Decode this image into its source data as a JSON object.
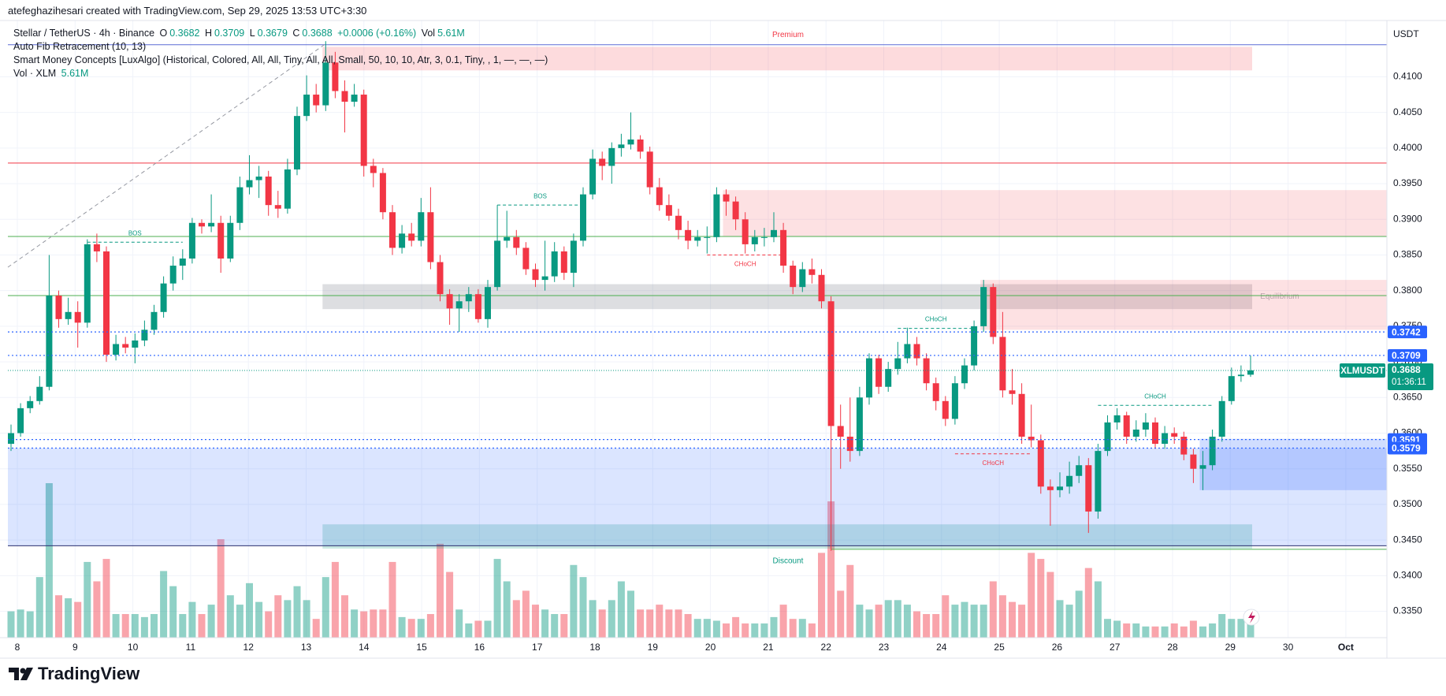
{
  "header": {
    "attribution": "atefeghazihesari created with TradingView.com, Sep 29, 2025 13:53 UTC+3:30"
  },
  "legend": {
    "symbol": "Stellar / TetherUS · 4h · Binance",
    "fields": [
      {
        "key": "O",
        "value": 0.3682
      },
      {
        "key": "H",
        "value": 0.3709
      },
      {
        "key": "L",
        "value": 0.3679
      },
      {
        "key": "C",
        "value": 0.3688
      }
    ],
    "change": "+0.0006 (+0.16%)",
    "vol_key": "Vol",
    "vol": "5.61M",
    "indicators": [
      "Auto Fib Retracement (10, 13)",
      "Smart Money Concepts [LuxAlgo] (Historical, Colored, All, All, Tiny, All, All, Small, 50, 10, 10, Atr, 3, 0.1, Tiny, , 1, —, —, —)"
    ],
    "volume_name": "Vol · XLM",
    "volume_value": "5.61M"
  },
  "brand": "TradingView",
  "chart_data": {
    "type": "candlestick",
    "currency": "USDT",
    "ylim": [
      0.3313,
      0.4179
    ],
    "yticks": [
      {
        "value": 0.335,
        "label": "0.3350"
      },
      {
        "value": 0.34,
        "label": "0.3400"
      },
      {
        "value": 0.345,
        "label": "0.3450"
      },
      {
        "value": 0.35,
        "label": "0.3500"
      },
      {
        "value": 0.355,
        "label": "0.3550"
      },
      {
        "value": 0.36,
        "label": "0.3600"
      },
      {
        "value": 0.365,
        "label": "0.3650"
      },
      {
        "value": 0.37,
        "label": "0.3700"
      },
      {
        "value": 0.375,
        "label": "0.3750"
      },
      {
        "value": 0.38,
        "label": "0.3800"
      },
      {
        "value": 0.385,
        "label": "0.3850"
      },
      {
        "value": 0.39,
        "label": "0.3900"
      },
      {
        "value": 0.395,
        "label": "0.3950"
      },
      {
        "value": 0.4,
        "label": "0.4000"
      },
      {
        "value": 0.405,
        "label": "0.4050"
      },
      {
        "value": 0.41,
        "label": "0.4100"
      }
    ],
    "day_labels": [
      "8",
      "9",
      "10",
      "11",
      "12",
      "13",
      "14",
      "15",
      "16",
      "17",
      "18",
      "19",
      "20",
      "21",
      "22",
      "23",
      "24",
      "25",
      "26",
      "27",
      "28",
      "29",
      "30",
      "Oct"
    ],
    "grid": true,
    "up_color": "#089981",
    "down_color": "#f23645",
    "candles": [
      [
        0.3585,
        0.3612,
        0.3575,
        0.36
      ],
      [
        0.36,
        0.3642,
        0.3595,
        0.3635
      ],
      [
        0.3635,
        0.3652,
        0.3628,
        0.3645
      ],
      [
        0.3645,
        0.368,
        0.364,
        0.3665
      ],
      [
        0.3665,
        0.385,
        0.366,
        0.3793
      ],
      [
        0.3793,
        0.38,
        0.3748,
        0.376
      ],
      [
        0.376,
        0.379,
        0.3752,
        0.377
      ],
      [
        0.377,
        0.3785,
        0.372,
        0.3755
      ],
      [
        0.3755,
        0.3872,
        0.3748,
        0.3865
      ],
      [
        0.3865,
        0.388,
        0.384,
        0.3855
      ],
      [
        0.3855,
        0.3862,
        0.37,
        0.371
      ],
      [
        0.371,
        0.3738,
        0.3702,
        0.3725
      ],
      [
        0.3725,
        0.3735,
        0.3712,
        0.372
      ],
      [
        0.372,
        0.374,
        0.3698,
        0.373
      ],
      [
        0.373,
        0.3758,
        0.3722,
        0.3745
      ],
      [
        0.3745,
        0.378,
        0.3738,
        0.377
      ],
      [
        0.377,
        0.382,
        0.3762,
        0.381
      ],
      [
        0.381,
        0.3848,
        0.38,
        0.3835
      ],
      [
        0.3835,
        0.3858,
        0.3815,
        0.3845
      ],
      [
        0.3845,
        0.3902,
        0.3838,
        0.3895
      ],
      [
        0.3895,
        0.39,
        0.388,
        0.389
      ],
      [
        0.389,
        0.3935,
        0.3882,
        0.3895
      ],
      [
        0.3895,
        0.3905,
        0.3825,
        0.3845
      ],
      [
        0.3845,
        0.3905,
        0.384,
        0.3895
      ],
      [
        0.3895,
        0.396,
        0.3885,
        0.3945
      ],
      [
        0.3945,
        0.399,
        0.3935,
        0.3955
      ],
      [
        0.3955,
        0.3975,
        0.393,
        0.396
      ],
      [
        0.396,
        0.3968,
        0.3905,
        0.392
      ],
      [
        0.392,
        0.394,
        0.3902,
        0.3915
      ],
      [
        0.3915,
        0.3985,
        0.3908,
        0.397
      ],
      [
        0.397,
        0.4058,
        0.3962,
        0.4045
      ],
      [
        0.4045,
        0.4102,
        0.4038,
        0.4075
      ],
      [
        0.4075,
        0.409,
        0.405,
        0.406
      ],
      [
        0.406,
        0.415,
        0.4052,
        0.412
      ],
      [
        0.412,
        0.4135,
        0.407,
        0.408
      ],
      [
        0.408,
        0.4095,
        0.4022,
        0.4065
      ],
      [
        0.4065,
        0.409,
        0.4058,
        0.4075
      ],
      [
        0.4075,
        0.4082,
        0.396,
        0.3975
      ],
      [
        0.3975,
        0.3985,
        0.3945,
        0.3965
      ],
      [
        0.3965,
        0.3972,
        0.39,
        0.391
      ],
      [
        0.391,
        0.392,
        0.385,
        0.386
      ],
      [
        0.386,
        0.3892,
        0.3852,
        0.388
      ],
      [
        0.388,
        0.3895,
        0.3862,
        0.387
      ],
      [
        0.387,
        0.393,
        0.3862,
        0.391
      ],
      [
        0.391,
        0.3945,
        0.383,
        0.384
      ],
      [
        0.384,
        0.385,
        0.3785,
        0.3795
      ],
      [
        0.3795,
        0.3802,
        0.3752,
        0.3775
      ],
      [
        0.3775,
        0.3795,
        0.3742,
        0.3785
      ],
      [
        0.3785,
        0.3805,
        0.377,
        0.3795
      ],
      [
        0.3795,
        0.3802,
        0.3755,
        0.376
      ],
      [
        0.376,
        0.3815,
        0.3748,
        0.3805
      ],
      [
        0.3805,
        0.392,
        0.38,
        0.387
      ],
      [
        0.387,
        0.3912,
        0.386,
        0.3875
      ],
      [
        0.3875,
        0.3885,
        0.385,
        0.386
      ],
      [
        0.386,
        0.3868,
        0.3822,
        0.383
      ],
      [
        0.383,
        0.3838,
        0.3805,
        0.3815
      ],
      [
        0.3815,
        0.387,
        0.38,
        0.382
      ],
      [
        0.382,
        0.3868,
        0.3812,
        0.3855
      ],
      [
        0.3855,
        0.3862,
        0.3815,
        0.3825
      ],
      [
        0.3825,
        0.388,
        0.3805,
        0.387
      ],
      [
        0.387,
        0.3945,
        0.3862,
        0.3935
      ],
      [
        0.3935,
        0.3998,
        0.3928,
        0.3985
      ],
      [
        0.3985,
        0.3995,
        0.3955,
        0.3975
      ],
      [
        0.3975,
        0.4008,
        0.395,
        0.4
      ],
      [
        0.4,
        0.402,
        0.3988,
        0.4005
      ],
      [
        0.4005,
        0.405,
        0.3998,
        0.4012
      ],
      [
        0.4012,
        0.4018,
        0.3985,
        0.3995
      ],
      [
        0.3995,
        0.4002,
        0.3935,
        0.3945
      ],
      [
        0.3945,
        0.3958,
        0.3912,
        0.392
      ],
      [
        0.392,
        0.3935,
        0.3898,
        0.3905
      ],
      [
        0.3905,
        0.3915,
        0.3872,
        0.3885
      ],
      [
        0.3885,
        0.3898,
        0.3858,
        0.387
      ],
      [
        0.387,
        0.3885,
        0.3862,
        0.3875
      ],
      [
        0.3875,
        0.389,
        0.3852,
        0.3875
      ],
      [
        0.3875,
        0.3945,
        0.3868,
        0.3935
      ],
      [
        0.3935,
        0.3942,
        0.3905,
        0.3925
      ],
      [
        0.3925,
        0.3932,
        0.3885,
        0.39
      ],
      [
        0.39,
        0.391,
        0.3852,
        0.3865
      ],
      [
        0.3865,
        0.3885,
        0.3855,
        0.3875
      ],
      [
        0.3875,
        0.3888,
        0.3862,
        0.3875
      ],
      [
        0.3875,
        0.391,
        0.3868,
        0.3885
      ],
      [
        0.3885,
        0.3895,
        0.3825,
        0.3835
      ],
      [
        0.3835,
        0.3842,
        0.3795,
        0.3805
      ],
      [
        0.3805,
        0.384,
        0.3798,
        0.383
      ],
      [
        0.383,
        0.3845,
        0.381,
        0.3822
      ],
      [
        0.3822,
        0.383,
        0.3775,
        0.3785
      ],
      [
        0.3785,
        0.3792,
        0.3435,
        0.361
      ],
      [
        0.361,
        0.364,
        0.355,
        0.3595
      ],
      [
        0.3595,
        0.365,
        0.356,
        0.3575
      ],
      [
        0.3575,
        0.3665,
        0.3568,
        0.365
      ],
      [
        0.365,
        0.3712,
        0.364,
        0.3705
      ],
      [
        0.3705,
        0.371,
        0.3655,
        0.3665
      ],
      [
        0.3665,
        0.37,
        0.3658,
        0.369
      ],
      [
        0.369,
        0.3728,
        0.3682,
        0.3705
      ],
      [
        0.3705,
        0.3748,
        0.3698,
        0.3725
      ],
      [
        0.3725,
        0.3735,
        0.3695,
        0.3705
      ],
      [
        0.3705,
        0.3712,
        0.366,
        0.367
      ],
      [
        0.367,
        0.3678,
        0.3632,
        0.3645
      ],
      [
        0.3645,
        0.3652,
        0.361,
        0.362
      ],
      [
        0.362,
        0.368,
        0.3612,
        0.367
      ],
      [
        0.367,
        0.3705,
        0.3662,
        0.3695
      ],
      [
        0.3695,
        0.3758,
        0.3688,
        0.375
      ],
      [
        0.375,
        0.3815,
        0.3742,
        0.3805
      ],
      [
        0.3805,
        0.381,
        0.3725,
        0.3735
      ],
      [
        0.3735,
        0.377,
        0.365,
        0.366
      ],
      [
        0.366,
        0.369,
        0.364,
        0.3655
      ],
      [
        0.3655,
        0.367,
        0.3585,
        0.3595
      ],
      [
        0.3595,
        0.364,
        0.358,
        0.359
      ],
      [
        0.359,
        0.3598,
        0.3515,
        0.3525
      ],
      [
        0.3525,
        0.3535,
        0.347,
        0.352
      ],
      [
        0.352,
        0.3545,
        0.351,
        0.3525
      ],
      [
        0.3525,
        0.356,
        0.3515,
        0.354
      ],
      [
        0.354,
        0.3568,
        0.353,
        0.3555
      ],
      [
        0.3555,
        0.3565,
        0.346,
        0.349
      ],
      [
        0.349,
        0.3585,
        0.348,
        0.3575
      ],
      [
        0.3575,
        0.3625,
        0.3568,
        0.3615
      ],
      [
        0.3615,
        0.3635,
        0.3605,
        0.3625
      ],
      [
        0.3625,
        0.363,
        0.3585,
        0.3595
      ],
      [
        0.3595,
        0.3618,
        0.3588,
        0.3605
      ],
      [
        0.3605,
        0.3628,
        0.3595,
        0.3615
      ],
      [
        0.3615,
        0.3622,
        0.3578,
        0.3585
      ],
      [
        0.3585,
        0.361,
        0.3578,
        0.36
      ],
      [
        0.36,
        0.3608,
        0.3585,
        0.3595
      ],
      [
        0.3595,
        0.3602,
        0.3562,
        0.357
      ],
      [
        0.357,
        0.3578,
        0.353,
        0.355
      ],
      [
        0.355,
        0.3575,
        0.352,
        0.3555
      ],
      [
        0.3555,
        0.3605,
        0.3548,
        0.3595
      ],
      [
        0.3595,
        0.3652,
        0.3588,
        0.3645
      ],
      [
        0.3645,
        0.3692,
        0.364,
        0.368
      ],
      [
        0.368,
        0.3695,
        0.3672,
        0.3682
      ],
      [
        0.3682,
        0.3709,
        0.3679,
        0.3688
      ]
    ],
    "volume": [
      8.7,
      9.3,
      8.7,
      20,
      51,
      14,
      13,
      11.8,
      25,
      18.6,
      26,
      7.8,
      7.8,
      7.8,
      6.8,
      7.8,
      22,
      17,
      7.8,
      11.8,
      7.8,
      10.9,
      32.5,
      14,
      10.9,
      18,
      11.8,
      8.7,
      14,
      12.4,
      17,
      12.4,
      6.2,
      20,
      25,
      14,
      9.3,
      8.7,
      9.3,
      9.3,
      25,
      6.8,
      6.2,
      6.2,
      7.8,
      31,
      21.7,
      9.3,
      4.7,
      5.6,
      5.6,
      26,
      18.6,
      12.4,
      15.5,
      10.9,
      9.3,
      7.8,
      7.8,
      24,
      20,
      12.4,
      9.3,
      12.4,
      18.6,
      15.5,
      9.3,
      9.3,
      10.9,
      9.3,
      9.3,
      7.8,
      6.2,
      6.2,
      5.6,
      4.7,
      6.8,
      4.7,
      4.7,
      4.7,
      6.8,
      10.9,
      6.2,
      6.2,
      4.7,
      28,
      45,
      15.5,
      24,
      10.9,
      9.3,
      10.9,
      12.4,
      12.4,
      10.9,
      8.7,
      7.8,
      7.8,
      14,
      10.9,
      11.8,
      10.9,
      10.9,
      18.6,
      14,
      11.8,
      10.9,
      28,
      26,
      21.7,
      12.4,
      10.9,
      15.5,
      23,
      18.6,
      6.2,
      5.6,
      4.7,
      4.7,
      3.7,
      3.7,
      3.7,
      4.7,
      3.7,
      5.6,
      3.7,
      4.7,
      7.8,
      6.2,
      6.2,
      5.61
    ],
    "zones": [
      {
        "label": "Premium",
        "top": 0.4142,
        "bottom": 0.4109,
        "color": "rgba(242,54,69,0.18)",
        "label_color": "#f23645"
      },
      {
        "label": "Equilibrium",
        "top": 0.3809,
        "bottom": 0.3774,
        "color": "rgba(120,123,134,0.25)",
        "label_color": "#b2b5be"
      },
      {
        "label": "Discount",
        "top": 0.3472,
        "bottom": 0.3438,
        "color": "rgba(8,153,129,0.22)",
        "label_color": "#089981"
      },
      {
        "top": 0.3941,
        "bottom": 0.3876,
        "color": "rgba(242,54,69,0.15)"
      },
      {
        "top": 0.3815,
        "bottom": 0.3745,
        "color": "rgba(242,54,69,0.15)"
      },
      {
        "top": 0.3579,
        "bottom": 0.3442,
        "color": "rgba(41,98,255,0.17)"
      },
      {
        "top": 0.3592,
        "bottom": 0.352,
        "color": "rgba(41,98,255,0.22)"
      }
    ],
    "levels": [
      {
        "value": 0.4145,
        "color": "#5b6bd6"
      },
      {
        "value": 0.3979,
        "color": "#f23645"
      },
      {
        "value": 0.3876,
        "color": "#4caf50"
      },
      {
        "value": 0.3793,
        "color": "#4caf50"
      },
      {
        "value": 0.3442,
        "color": "#2a2e6e"
      },
      {
        "value": 0.3437,
        "color": "#4caf50"
      }
    ],
    "structures": [
      {
        "label": "BOS",
        "level": 0.3868,
        "color": "#089981"
      },
      {
        "label": "BOS",
        "level": 0.392,
        "color": "#089981"
      },
      {
        "label": "CHoCH",
        "level": 0.385,
        "color": "#f23645"
      },
      {
        "label": "CHoCH",
        "level": 0.3747,
        "color": "#089981"
      },
      {
        "label": "CHoCH",
        "level": 0.3571,
        "color": "#f23645"
      },
      {
        "label": "CHoCH",
        "level": 0.3639,
        "color": "#089981"
      }
    ],
    "price_tags": [
      {
        "value": 0.3742,
        "color": "#2962ff"
      },
      {
        "value": 0.3709,
        "color": "#2962ff"
      },
      {
        "value": 0.3591,
        "color": "#2962ff"
      },
      {
        "value": 0.3579,
        "color": "#2962ff"
      }
    ],
    "last_price": {
      "symbol": "XLMUSDT",
      "value": 0.3688,
      "countdown": "01:36:11",
      "color": "#089981"
    }
  }
}
